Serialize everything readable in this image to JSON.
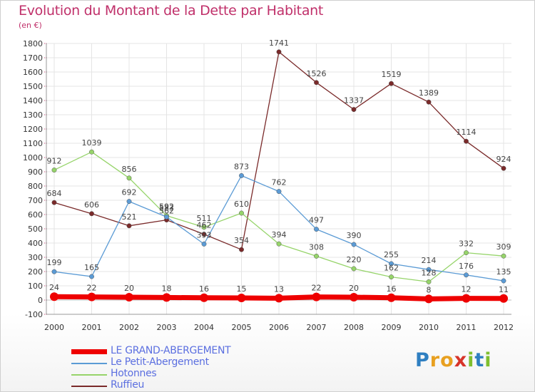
{
  "header": {
    "title": "Evolution du Montant de la Dette par Habitant",
    "subtitle": "(en €)"
  },
  "logo": {
    "text": "Proxiti",
    "letters": [
      "P",
      "r",
      "o",
      "x",
      "i",
      "t",
      "i"
    ]
  },
  "chart_data": {
    "type": "line",
    "x": [
      "2000",
      "2001",
      "2002",
      "2003",
      "2004",
      "2005",
      "2006",
      "2007",
      "2008",
      "2009",
      "2010",
      "2011",
      "2012"
    ],
    "ylim": [
      -100,
      1800
    ],
    "yticks": [
      -100,
      0,
      100,
      200,
      300,
      400,
      500,
      600,
      700,
      800,
      900,
      1000,
      1100,
      1200,
      1300,
      1400,
      1500,
      1600,
      1700,
      1800
    ],
    "grid": true,
    "legend_position": "bottom-left",
    "series": [
      {
        "name": "LE GRAND-ABERGEMENT",
        "color": "#ee0000",
        "values": [
          24,
          22,
          20,
          18,
          16,
          15,
          13,
          22,
          20,
          16,
          8,
          12,
          11
        ],
        "labels": [
          "24",
          "22",
          "20",
          "18",
          "16",
          "15",
          "13",
          "22",
          "20",
          "16",
          "8",
          "12",
          "11"
        ]
      },
      {
        "name": "Le Petit-Abergement",
        "color": "#5b9bd5",
        "values": [
          199,
          165,
          692,
          583,
          393,
          873,
          762,
          497,
          390,
          255,
          214,
          176,
          135
        ],
        "labels": [
          "199",
          "165",
          "692",
          "583",
          "393",
          "873",
          "762",
          "497",
          "390",
          "255",
          "214",
          "176",
          "135"
        ]
      },
      {
        "name": "Hotonnes",
        "color": "#96d46a",
        "values": [
          912,
          1039,
          856,
          592,
          511,
          610,
          394,
          308,
          220,
          162,
          128,
          332,
          309
        ],
        "labels": [
          "912",
          "1039",
          "856",
          "592",
          "511",
          "610",
          "394",
          "308",
          "220",
          "162",
          "128",
          "332",
          "309"
        ]
      },
      {
        "name": "Ruffieu",
        "color": "#7a2a2a",
        "values": [
          684,
          606,
          521,
          562,
          462,
          354,
          1741,
          1526,
          1337,
          1519,
          1389,
          1114,
          924
        ],
        "labels": [
          "684",
          "606",
          "521",
          "562",
          "462",
          "354",
          "1741",
          "1526",
          "1337",
          "1519",
          "1389",
          "1114",
          "924"
        ]
      }
    ]
  }
}
